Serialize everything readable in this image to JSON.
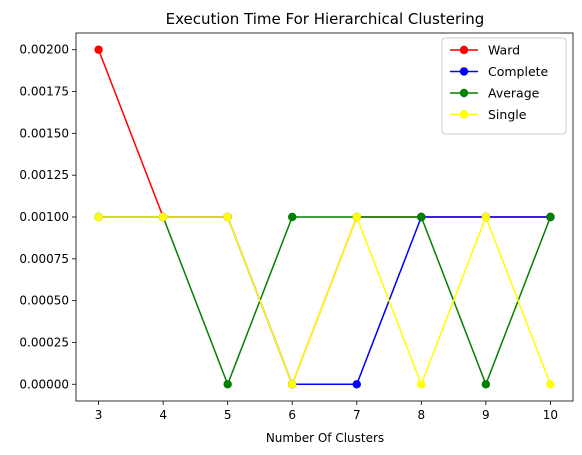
{
  "chart_data": {
    "type": "line",
    "title": "Execution Time For Hierarchical Clustering",
    "xlabel": "Number Of Clusters",
    "ylabel": "",
    "x": [
      3,
      4,
      5,
      6,
      7,
      8,
      9,
      10
    ],
    "xticks": [
      "3",
      "4",
      "5",
      "6",
      "7",
      "8",
      "9",
      "10"
    ],
    "yticks": [
      "0.00000",
      "0.00025",
      "0.00050",
      "0.00075",
      "0.00100",
      "0.00125",
      "0.00150",
      "0.00175",
      "0.00200"
    ],
    "ytick_values": [
      0.0,
      0.00025,
      0.0005,
      0.00075,
      0.001,
      0.00125,
      0.0015,
      0.00175,
      0.002
    ],
    "xlim": [
      2.65,
      10.35
    ],
    "ylim": [
      -0.0001,
      0.0021
    ],
    "grid": false,
    "legend_position": "top-right",
    "series": [
      {
        "name": "Ward",
        "color": "#ff0000",
        "values": [
          0.002,
          0.001,
          0.001,
          0.0,
          0.001,
          0.001,
          0.001,
          0.001
        ]
      },
      {
        "name": "Complete",
        "color": "#0000ff",
        "values": [
          0.001,
          0.001,
          0.001,
          0.0,
          0.0,
          0.001,
          0.001,
          0.001
        ]
      },
      {
        "name": "Average",
        "color": "#008000",
        "values": [
          0.001,
          0.001,
          0.0,
          0.001,
          0.001,
          0.001,
          0.0,
          0.001
        ]
      },
      {
        "name": "Single",
        "color": "#ffff00",
        "values": [
          0.001,
          0.001,
          0.001,
          0.0,
          0.001,
          0.0,
          0.001,
          0.0
        ]
      }
    ]
  }
}
